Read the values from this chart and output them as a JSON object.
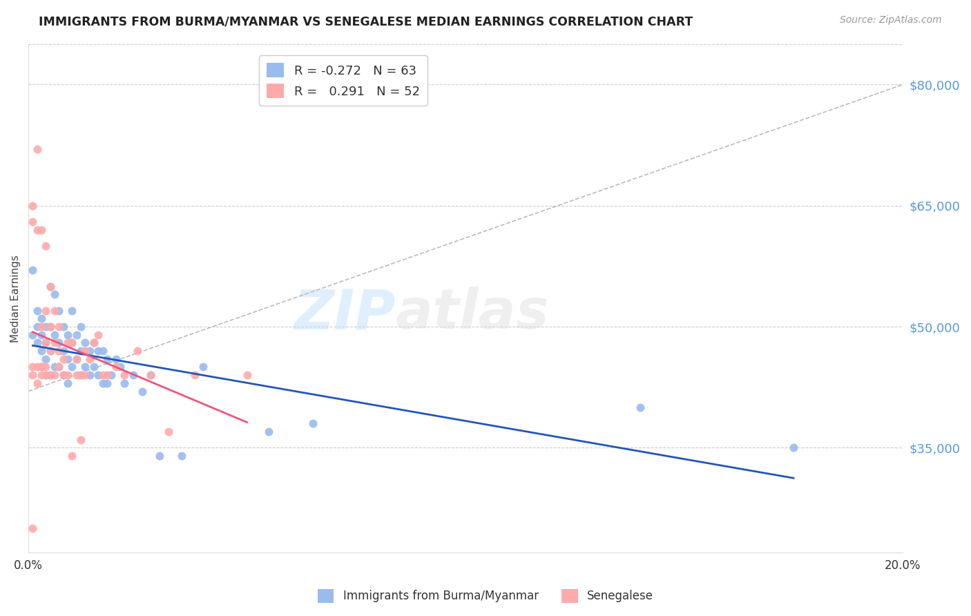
{
  "title": "IMMIGRANTS FROM BURMA/MYANMAR VS SENEGALESE MEDIAN EARNINGS CORRELATION CHART",
  "source": "Source: ZipAtlas.com",
  "ylabel": "Median Earnings",
  "y_ticks": [
    35000,
    50000,
    65000,
    80000
  ],
  "y_tick_labels": [
    "$35,000",
    "$50,000",
    "$65,000",
    "$80,000"
  ],
  "xlim": [
    0.0,
    0.2
  ],
  "ylim": [
    22000,
    85000
  ],
  "color_blue": "#99BBEE",
  "color_pink": "#FFAAAA",
  "color_line_blue": "#2255BB",
  "color_line_pink": "#EE5577",
  "color_diagonal": "#BBBBBB",
  "color_axis_right": "#5599DD",
  "color_grid": "#CCCCCC",
  "watermark_zip": "ZIP",
  "watermark_atlas": "atlas",
  "figsize": [
    14.06,
    8.92
  ],
  "dpi": 100,
  "blue_x": [
    0.001,
    0.001,
    0.002,
    0.002,
    0.002,
    0.003,
    0.003,
    0.003,
    0.003,
    0.004,
    0.004,
    0.004,
    0.004,
    0.005,
    0.005,
    0.005,
    0.005,
    0.006,
    0.006,
    0.006,
    0.007,
    0.007,
    0.007,
    0.008,
    0.008,
    0.008,
    0.009,
    0.009,
    0.009,
    0.01,
    0.01,
    0.01,
    0.011,
    0.011,
    0.012,
    0.012,
    0.012,
    0.013,
    0.013,
    0.014,
    0.014,
    0.015,
    0.015,
    0.016,
    0.016,
    0.017,
    0.017,
    0.018,
    0.018,
    0.019,
    0.02,
    0.021,
    0.022,
    0.024,
    0.026,
    0.028,
    0.03,
    0.035,
    0.04,
    0.055,
    0.065,
    0.14,
    0.175
  ],
  "blue_y": [
    57000,
    49000,
    52000,
    50000,
    48000,
    51000,
    49000,
    47000,
    45000,
    50000,
    48000,
    46000,
    44000,
    55000,
    50000,
    47000,
    44000,
    54000,
    49000,
    45000,
    52000,
    48000,
    45000,
    50000,
    47000,
    44000,
    49000,
    46000,
    43000,
    52000,
    48000,
    45000,
    49000,
    46000,
    50000,
    47000,
    44000,
    48000,
    45000,
    47000,
    44000,
    48000,
    45000,
    47000,
    44000,
    47000,
    43000,
    46000,
    43000,
    44000,
    46000,
    45000,
    43000,
    44000,
    42000,
    44000,
    34000,
    34000,
    45000,
    37000,
    38000,
    40000,
    35000
  ],
  "pink_x": [
    0.001,
    0.001,
    0.001,
    0.002,
    0.002,
    0.002,
    0.003,
    0.003,
    0.003,
    0.004,
    0.004,
    0.004,
    0.004,
    0.005,
    0.005,
    0.005,
    0.006,
    0.006,
    0.006,
    0.007,
    0.007,
    0.007,
    0.008,
    0.008,
    0.009,
    0.009,
    0.01,
    0.01,
    0.011,
    0.011,
    0.012,
    0.012,
    0.013,
    0.013,
    0.014,
    0.015,
    0.016,
    0.017,
    0.018,
    0.02,
    0.022,
    0.025,
    0.028,
    0.032,
    0.038,
    0.05,
    0.001,
    0.002,
    0.003,
    0.004,
    0.005,
    0.001
  ],
  "pink_y": [
    65000,
    63000,
    44000,
    72000,
    62000,
    43000,
    62000,
    50000,
    44000,
    60000,
    52000,
    48000,
    44000,
    55000,
    50000,
    44000,
    52000,
    48000,
    44000,
    50000,
    47000,
    45000,
    46000,
    44000,
    48000,
    44000,
    48000,
    34000,
    46000,
    44000,
    44000,
    36000,
    47000,
    44000,
    46000,
    48000,
    49000,
    44000,
    44000,
    45000,
    44000,
    47000,
    44000,
    37000,
    44000,
    44000,
    45000,
    45000,
    45000,
    45000,
    47000,
    25000
  ]
}
